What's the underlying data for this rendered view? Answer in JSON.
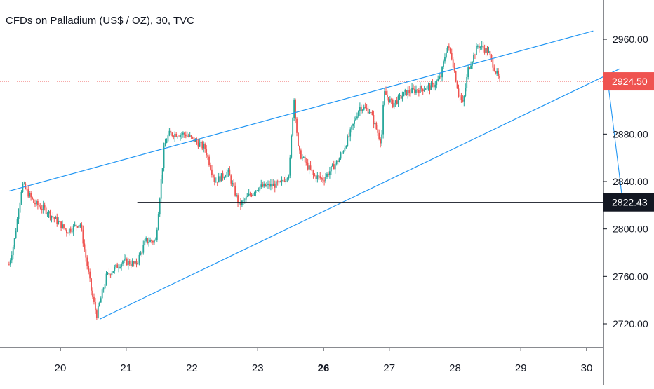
{
  "chart_data": {
    "type": "candlestick",
    "title": "CFDs on Palladium (US$ / OZ), 30, TVC",
    "x_ticks": [
      "20",
      "21",
      "22",
      "23",
      "26",
      "27",
      "28",
      "29",
      "30"
    ],
    "x_tick_bold": "26",
    "y_ticks": [
      2720,
      2760,
      2800,
      2840,
      2880,
      2920,
      2960
    ],
    "y_tick_labels": [
      "2720.00",
      "2760.00",
      "2800.00",
      "2840.00",
      "2880.00",
      "2920.00",
      "2960.00"
    ],
    "ylim": [
      2705,
      2977
    ],
    "grid": false,
    "price_badge": {
      "value": 2924.5,
      "label": "2924.50",
      "color": "#ef5350"
    },
    "level_badge": {
      "value": 2822.43,
      "label": "2822.43",
      "color": "#131722"
    },
    "colors": {
      "up": "#26a69a",
      "down": "#ef5350",
      "trendline": "#2196f3",
      "level": "#131722",
      "axis": "#131722"
    },
    "upper_trendline": {
      "from": {
        "day": 19.22,
        "price": 2832
      },
      "to": {
        "day": 28.1,
        "price": 2967
      }
    },
    "lower_trendline": {
      "from": {
        "day": 20.6,
        "price": 2724
      },
      "to": {
        "day": 28.5,
        "price": 2935
      }
    },
    "level_line": {
      "price": 2822.43,
      "from_day": 21.17
    },
    "arrow": {
      "from": {
        "day": 28.33,
        "price": 2921
      },
      "to": {
        "day": 28.55,
        "price": 2822
      }
    },
    "anchors": [
      {
        "day": 19.22,
        "price": 2770
      },
      {
        "day": 19.3,
        "price": 2790
      },
      {
        "day": 19.42,
        "price": 2838
      },
      {
        "day": 19.6,
        "price": 2822
      },
      {
        "day": 19.8,
        "price": 2815
      },
      {
        "day": 20.1,
        "price": 2798
      },
      {
        "day": 20.3,
        "price": 2805
      },
      {
        "day": 20.48,
        "price": 2745
      },
      {
        "day": 20.55,
        "price": 2727
      },
      {
        "day": 20.7,
        "price": 2760
      },
      {
        "day": 20.95,
        "price": 2773
      },
      {
        "day": 21.15,
        "price": 2770
      },
      {
        "day": 21.3,
        "price": 2790
      },
      {
        "day": 21.45,
        "price": 2790
      },
      {
        "day": 21.58,
        "price": 2870
      },
      {
        "day": 21.65,
        "price": 2880
      },
      {
        "day": 21.9,
        "price": 2880
      },
      {
        "day": 22.2,
        "price": 2868
      },
      {
        "day": 22.35,
        "price": 2840
      },
      {
        "day": 22.55,
        "price": 2848
      },
      {
        "day": 22.72,
        "price": 2820
      },
      {
        "day": 23.0,
        "price": 2835
      },
      {
        "day": 23.35,
        "price": 2838
      },
      {
        "day": 23.48,
        "price": 2848
      },
      {
        "day": 23.55,
        "price": 2912
      },
      {
        "day": 23.62,
        "price": 2865
      },
      {
        "day": 23.85,
        "price": 2845
      },
      {
        "day": 24.0,
        "price": 2842
      },
      {
        "day": 24.25,
        "price": 2860
      },
      {
        "day": 24.4,
        "price": 2880
      },
      {
        "day": 24.55,
        "price": 2903
      },
      {
        "day": 24.7,
        "price": 2900
      },
      {
        "day": 24.88,
        "price": 2873
      },
      {
        "day": 24.92,
        "price": 2915
      },
      {
        "day": 25.05,
        "price": 2905
      },
      {
        "day": 25.25,
        "price": 2915
      },
      {
        "day": 25.45,
        "price": 2918
      },
      {
        "day": 25.65,
        "price": 2920
      },
      {
        "day": 25.78,
        "price": 2928
      },
      {
        "day": 25.88,
        "price": 2955
      },
      {
        "day": 25.95,
        "price": 2945
      },
      {
        "day": 26.05,
        "price": 2915
      },
      {
        "day": 26.12,
        "price": 2905
      },
      {
        "day": 26.2,
        "price": 2935
      },
      {
        "day": 26.35,
        "price": 2955
      },
      {
        "day": 26.5,
        "price": 2950
      },
      {
        "day": 26.6,
        "price": 2935
      },
      {
        "day": 26.68,
        "price": 2924.5
      }
    ]
  }
}
